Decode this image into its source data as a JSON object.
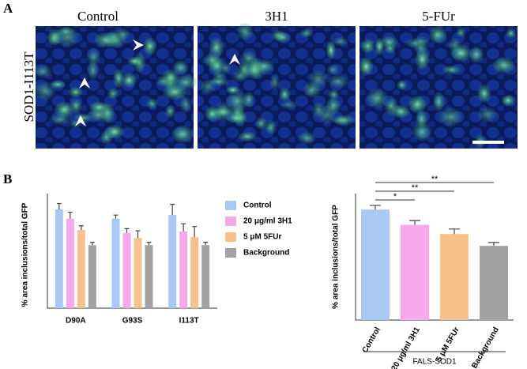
{
  "panel_a": {
    "label": "A",
    "row_label": "SOD1-I113T",
    "columns": [
      "Control",
      "3H1",
      "5-FUr"
    ]
  },
  "panel_b": {
    "label": "B"
  },
  "chart_data": [
    {
      "type": "grouped-bar",
      "y_label": "% area inclusions/total GFP",
      "categories": [
        "D90A",
        "G93S",
        "I113T"
      ],
      "ylim": [
        0,
        1.6
      ],
      "legend": "right",
      "series": [
        {
          "name": "Control",
          "color": "#a9c9f2",
          "values": [
            1.38,
            1.25,
            1.3
          ],
          "errors": [
            0.08,
            0.05,
            0.15
          ]
        },
        {
          "name": "20 μg/ml 3H1",
          "color": "#f6a9ea",
          "values": [
            1.25,
            1.05,
            1.07
          ],
          "errors": [
            0.09,
            0.06,
            0.11
          ]
        },
        {
          "name": "5 μM 5FUr",
          "color": "#f6c18d",
          "values": [
            1.09,
            0.98,
            0.99
          ],
          "errors": [
            0.06,
            0.1,
            0.15
          ]
        },
        {
          "name": "Background",
          "color": "#a3a3a3",
          "values": [
            0.88,
            0.88,
            0.88
          ],
          "errors": [
            0.04,
            0.04,
            0.04
          ]
        }
      ]
    },
    {
      "type": "bar",
      "y_label": "% area inclusions/total GFP",
      "x_label": "FALS-SOD1",
      "categories": [
        "Control",
        "20 μg/ml 3H1",
        "5 μM 5FUr",
        "Background"
      ],
      "values": [
        1.31,
        1.13,
        1.02,
        0.88
      ],
      "errors": [
        0.05,
        0.05,
        0.06,
        0.04
      ],
      "colors": [
        "#a9c9f2",
        "#f6a9ea",
        "#f6c18d",
        "#a3a3a3"
      ],
      "ylim": [
        0,
        1.5
      ],
      "significance": [
        {
          "label": "*",
          "from": 0,
          "to": 1
        },
        {
          "label": "**",
          "from": 0,
          "to": 2
        },
        {
          "label": "**",
          "from": 0,
          "to": 3
        }
      ]
    }
  ]
}
